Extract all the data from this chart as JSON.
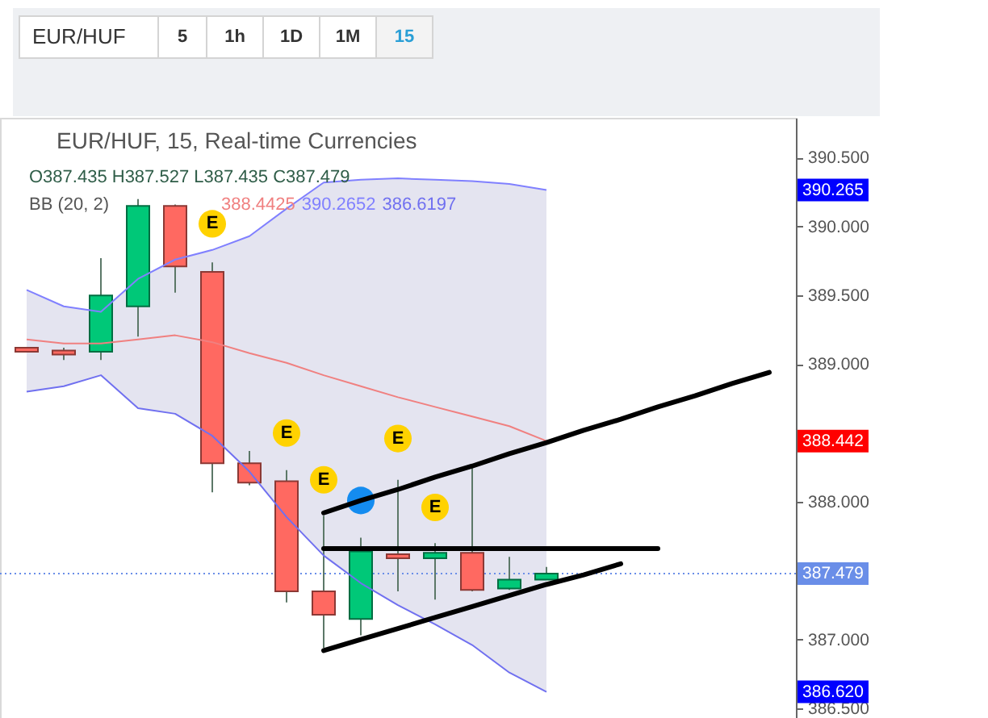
{
  "chart_data": {
    "type": "candlestick",
    "title": "EUR/HUF, 15, Real-time Currencies",
    "subtitle": "O387.435 H387.527 L387.435 C387.479",
    "legend_title": "BB (20, 2)",
    "legend": "top left",
    "grid": false,
    "categories": [
      null,
      null,
      null,
      null,
      null,
      null,
      null,
      null,
      null,
      null,
      null,
      null,
      null,
      null,
      null,
      null,
      null,
      null,
      null,
      null,
      null
    ],
    "ohlc": [
      [
        389.12,
        389.12,
        389.09,
        389.09
      ],
      [
        389.1,
        389.12,
        389.03,
        389.07
      ],
      [
        389.09,
        389.77,
        389.03,
        389.5
      ],
      [
        389.42,
        390.2,
        389.2,
        390.15
      ],
      [
        390.15,
        390.16,
        389.52,
        389.71
      ],
      [
        389.67,
        389.74,
        388.07,
        388.28
      ],
      [
        388.28,
        388.37,
        388.12,
        388.14
      ],
      [
        388.15,
        388.23,
        387.27,
        387.35
      ],
      [
        387.35,
        387.9,
        386.94,
        387.18
      ],
      [
        387.15,
        387.74,
        387.03,
        387.64
      ],
      [
        387.62,
        388.16,
        387.35,
        387.59
      ],
      [
        387.59,
        387.7,
        387.29,
        387.63
      ],
      [
        387.63,
        388.27,
        387.35,
        387.36
      ],
      [
        387.37,
        387.6,
        387.36,
        387.435
      ],
      [
        387.435,
        387.527,
        387.435,
        387.479
      ],
      null,
      null,
      null,
      null,
      null,
      null
    ],
    "colors": [
      "#ff6961",
      "#ff6961",
      "#00c878",
      "#00c878",
      "#ff6961",
      "#ff6961",
      "#ff6961",
      "#ff6961",
      "#ff6961",
      "#00c878",
      "#ff6961",
      "#00c878",
      "#ff6961",
      "#00c878",
      "#00c878",
      null,
      null,
      null,
      null,
      null,
      null
    ],
    "series": [
      {
        "type": "line",
        "name": "388.4425",
        "color": "#f08080",
        "values": [
          389.18,
          389.15,
          389.15,
          389.18,
          389.21,
          389.16,
          389.08,
          389.01,
          388.92,
          388.84,
          388.76,
          388.69,
          388.62,
          388.55,
          388.4425,
          null,
          null,
          null,
          null,
          null,
          null
        ],
        "lower": [
          388.8,
          388.84,
          388.92,
          388.68,
          388.64,
          388.48,
          388.22,
          387.89,
          387.61,
          387.41,
          387.25,
          387.11,
          386.96,
          386.76,
          386.6197,
          null,
          null,
          null,
          null,
          null,
          null
        ],
        "upper": [
          389.54,
          389.42,
          389.38,
          389.62,
          389.76,
          389.83,
          389.93,
          390.13,
          390.32,
          390.34,
          390.35,
          390.34,
          390.33,
          390.31,
          390.2652,
          null,
          null,
          null,
          null,
          null,
          null
        ]
      },
      {
        "type": "line",
        "name": "390.2652",
        "color": "#8080ff",
        "values": [
          389.54,
          389.42,
          389.38,
          389.62,
          389.76,
          389.83,
          389.93,
          390.13,
          390.32,
          390.34,
          390.35,
          390.34,
          390.33,
          390.31,
          390.2652,
          null,
          null,
          null,
          null,
          null,
          null
        ]
      },
      {
        "type": "line",
        "name": "386.6197",
        "color": "#7070f0",
        "values": [
          388.8,
          388.84,
          388.92,
          388.68,
          388.64,
          388.48,
          388.22,
          387.89,
          387.61,
          387.41,
          387.25,
          387.11,
          386.96,
          386.76,
          386.6197,
          null,
          null,
          null,
          null,
          null,
          null
        ]
      },
      {
        "type": "line",
        "color": "#000000",
        "values": [
          null,
          null,
          null,
          null,
          null,
          null,
          null,
          null,
          387.92,
          388.01,
          388.09,
          388.18,
          388.26,
          388.35,
          388.43,
          388.52,
          388.6,
          388.69,
          388.77,
          388.86,
          388.94
        ]
      },
      {
        "type": "line",
        "color": "#000000",
        "values": [
          null,
          null,
          null,
          null,
          null,
          null,
          null,
          null,
          387.66,
          387.66,
          387.66,
          387.66,
          387.66,
          387.66,
          387.66,
          387.66,
          387.66,
          387.66,
          null,
          null,
          null
        ]
      },
      {
        "type": "line",
        "color": "#000000",
        "values": [
          null,
          null,
          null,
          null,
          null,
          null,
          null,
          null,
          386.92,
          387.0,
          387.08,
          387.16,
          387.24,
          387.32,
          387.4,
          387.47,
          387.55,
          null,
          null,
          null,
          null
        ]
      },
      {
        "type": "scatter",
        "color": "#ffd200",
        "marker": "circle",
        "values": [
          null,
          null,
          null,
          null,
          null,
          390.02,
          null,
          388.5,
          388.16,
          null,
          388.46,
          387.96,
          null,
          null,
          null,
          null,
          null,
          null,
          null,
          null,
          null
        ],
        "value_labels": [
          null,
          null,
          null,
          null,
          null,
          "E",
          null,
          "E",
          "E",
          null,
          "E",
          "E",
          null,
          null,
          null,
          null,
          null,
          null,
          null,
          null,
          null
        ]
      },
      {
        "type": "scatter",
        "color": "#148cf0",
        "marker": "circle",
        "values": [
          null,
          null,
          null,
          null,
          null,
          null,
          null,
          null,
          null,
          388.01,
          null,
          null,
          null,
          null,
          null,
          null,
          null,
          null,
          null,
          null,
          null
        ]
      }
    ],
    "ylim": [
      386.43,
      390.79
    ],
    "yticks": [
      {
        "value": 386.5,
        "label": "386.500"
      },
      {
        "value": 387.0,
        "label": "387.000"
      },
      {
        "value": 388.0,
        "label": "388.000"
      },
      {
        "value": 389.0,
        "label": "389.000"
      },
      {
        "value": 389.5,
        "label": "389.500"
      },
      {
        "value": 390.0,
        "label": "390.000"
      },
      {
        "value": 390.5,
        "label": "390.500"
      }
    ],
    "ref_lines": [
      {
        "axis": "y",
        "value": 387.479,
        "color": "#6a8ee8",
        "line_style": "dotted"
      }
    ],
    "annotations": [
      "EUR/HUF",
      "5",
      "1h",
      "1D",
      "1M",
      "15",
      {
        "text": "390.265",
        "y": 390.265
      },
      {
        "text": "388.442",
        "y": 388.442
      },
      {
        "text": "387.479",
        "y": 387.479
      },
      {
        "text": "386.620",
        "y": 386.62
      }
    ]
  }
}
